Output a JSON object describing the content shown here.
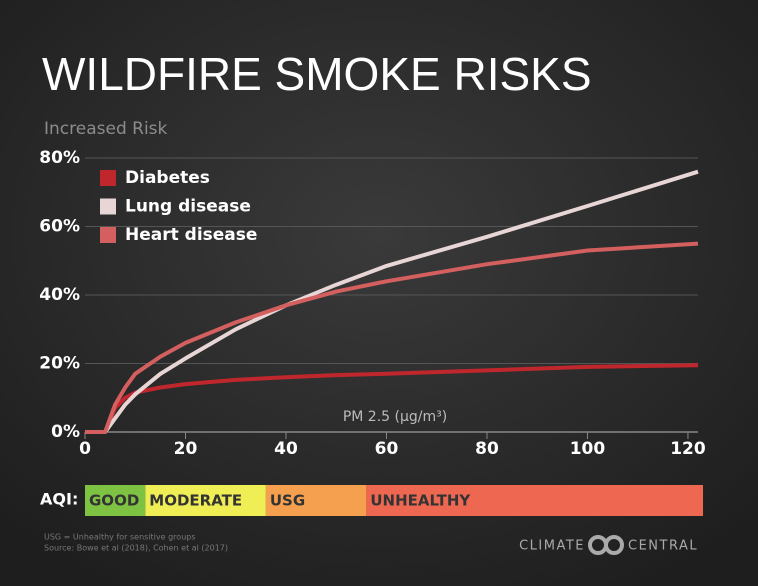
{
  "chart_data": {
    "type": "line",
    "title": "WILDFIRE SMOKE RISKS",
    "y_label": "Increased Risk",
    "x_label": "PM 2.5 (µg/m³)",
    "x": [
      0,
      4,
      6,
      8,
      10,
      15,
      20,
      30,
      40,
      50,
      60,
      80,
      100,
      122
    ],
    "series": [
      {
        "name": "Diabetes",
        "color": "#c0272d",
        "values": [
          0,
          0,
          7,
          10,
          11.5,
          13,
          14,
          15.2,
          16,
          16.6,
          17,
          18,
          19,
          19.5
        ]
      },
      {
        "name": "Lung disease",
        "color": "#e8d6d6",
        "values": [
          0,
          0,
          4,
          8,
          11,
          17,
          21.5,
          30,
          37,
          43,
          48.5,
          57,
          66,
          76
        ]
      },
      {
        "name": "Heart disease",
        "color": "#d45f5f",
        "values": [
          0,
          0,
          8,
          13,
          17,
          22,
          26,
          32,
          37,
          41,
          44,
          49,
          53,
          55
        ]
      }
    ],
    "xlim": [
      0,
      122
    ],
    "xticks": [
      0,
      20,
      40,
      60,
      80,
      100,
      120
    ],
    "ylim": [
      0,
      80
    ],
    "yticks": [
      {
        "value": 0,
        "label": "0%"
      },
      {
        "value": 20,
        "label": "20%"
      },
      {
        "value": 40,
        "label": "40%"
      },
      {
        "value": 60,
        "label": "60%"
      },
      {
        "value": 80,
        "label": "80%"
      }
    ],
    "grid": true,
    "legend": "top-left"
  },
  "aqi": {
    "label": "AQI:",
    "bands": [
      {
        "name": "GOOD",
        "from": 0,
        "to": 12,
        "color": "#7dc242"
      },
      {
        "name": "MODERATE",
        "from": 12,
        "to": 36,
        "color": "#f0ee55"
      },
      {
        "name": "USG",
        "from": 36,
        "to": 56,
        "color": "#f5a04e"
      },
      {
        "name": "UNHEALTHY",
        "from": 56,
        "to": 123,
        "color": "#ee6751"
      }
    ]
  },
  "footnotes": [
    "USG = Unhealthy for sensitive groups",
    "Source: Bowe et al (2018), Cohen et al (2017)"
  ],
  "logo": {
    "left": "CLIMATE",
    "right": "CENTRAL"
  }
}
